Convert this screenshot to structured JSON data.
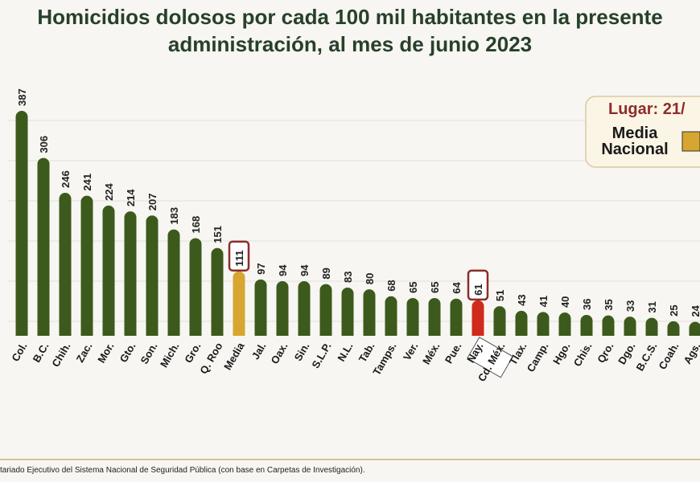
{
  "chart_data": {
    "type": "bar",
    "title": "Homicidios dolosos por cada 100 mil habitantes en la presente administración, al mes de junio 2023",
    "categories": [
      "Col.",
      "B.C.",
      "Chih.",
      "Zac.",
      "Mor.",
      "Gto.",
      "Son.",
      "Mich.",
      "Gro.",
      "Q. Roo",
      "Media",
      "Jal.",
      "Oax.",
      "Sin.",
      "S.L.P.",
      "N.L.",
      "Tab.",
      "Tamps.",
      "Ver.",
      "Méx.",
      "Pue.",
      "Nay.",
      "Cd. Méx.",
      "Tlax.",
      "Camp.",
      "Hgo.",
      "Chis.",
      "Qro.",
      "Dgo.",
      "B.C.S.",
      "Coah.",
      "Ags."
    ],
    "values": [
      387,
      306,
      246,
      241,
      224,
      214,
      207,
      183,
      168,
      151,
      111,
      97,
      94,
      94,
      89,
      83,
      80,
      68,
      65,
      65,
      64,
      61,
      51,
      43,
      41,
      40,
      36,
      35,
      33,
      31,
      25,
      24
    ],
    "colors": [
      "#3c5a1c",
      "#3c5a1c",
      "#3c5a1c",
      "#3c5a1c",
      "#3c5a1c",
      "#3c5a1c",
      "#3c5a1c",
      "#3c5a1c",
      "#3c5a1c",
      "#3c5a1c",
      "#d6a630",
      "#3c5a1c",
      "#3c5a1c",
      "#3c5a1c",
      "#3c5a1c",
      "#3c5a1c",
      "#3c5a1c",
      "#3c5a1c",
      "#3c5a1c",
      "#3c5a1c",
      "#3c5a1c",
      "#d02a1c",
      "#3c5a1c",
      "#3c5a1c",
      "#3c5a1c",
      "#3c5a1c",
      "#3c5a1c",
      "#3c5a1c",
      "#3c5a1c",
      "#3c5a1c",
      "#3c5a1c",
      "#3c5a1c"
    ],
    "legend": {
      "rank": "Lugar: 21/",
      "label": "Media Nacional",
      "color": "#d6a630"
    },
    "source": "tariado Ejecutivo del Sistema Nacional de Seguridad Pública (con base en Carpetas de Investigación)."
  }
}
